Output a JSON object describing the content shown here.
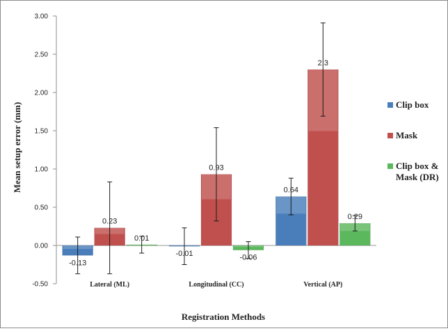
{
  "chart_data": {
    "type": "bar",
    "title": "",
    "xlabel": "Registration Methods",
    "ylabel": "Mean setup error (mm)",
    "ylim": [
      -0.5,
      3.0
    ],
    "yticks": [
      -0.5,
      0.0,
      0.5,
      1.0,
      1.5,
      2.0,
      2.5,
      3.0
    ],
    "ytick_labels": [
      "-0.50",
      "0.00",
      "0.50",
      "1.00",
      "1.50",
      "2.00",
      "2.50",
      "3.00"
    ],
    "grid": false,
    "legend_position": "right",
    "categories": [
      "Lateral (ML)",
      "Longitudinal (CC)",
      "Vertical (AP)"
    ],
    "series": [
      {
        "name": "Clip box",
        "color": "#4a7ebb",
        "values": [
          -0.13,
          -0.01,
          0.64
        ],
        "value_labels": [
          "-0.13",
          "-0.01",
          "0.64"
        ],
        "error": [
          0.24,
          0.24,
          0.24
        ]
      },
      {
        "name": "Mask",
        "color": "#c0504d",
        "values": [
          0.23,
          0.93,
          2.3
        ],
        "value_labels": [
          "0.23",
          "0.93",
          "2.3"
        ],
        "error": [
          0.6,
          0.61,
          0.61
        ]
      },
      {
        "name": "Clip box & Mask (DR)",
        "legend_lines": [
          "Clip box &",
          "Mask (DR)"
        ],
        "color": "#5cb85c",
        "values": [
          0.01,
          -0.06,
          0.29
        ],
        "value_labels": [
          "0.01",
          "-0.06",
          "0.29"
        ],
        "error": [
          0.11,
          0.11,
          0.1
        ]
      }
    ]
  }
}
